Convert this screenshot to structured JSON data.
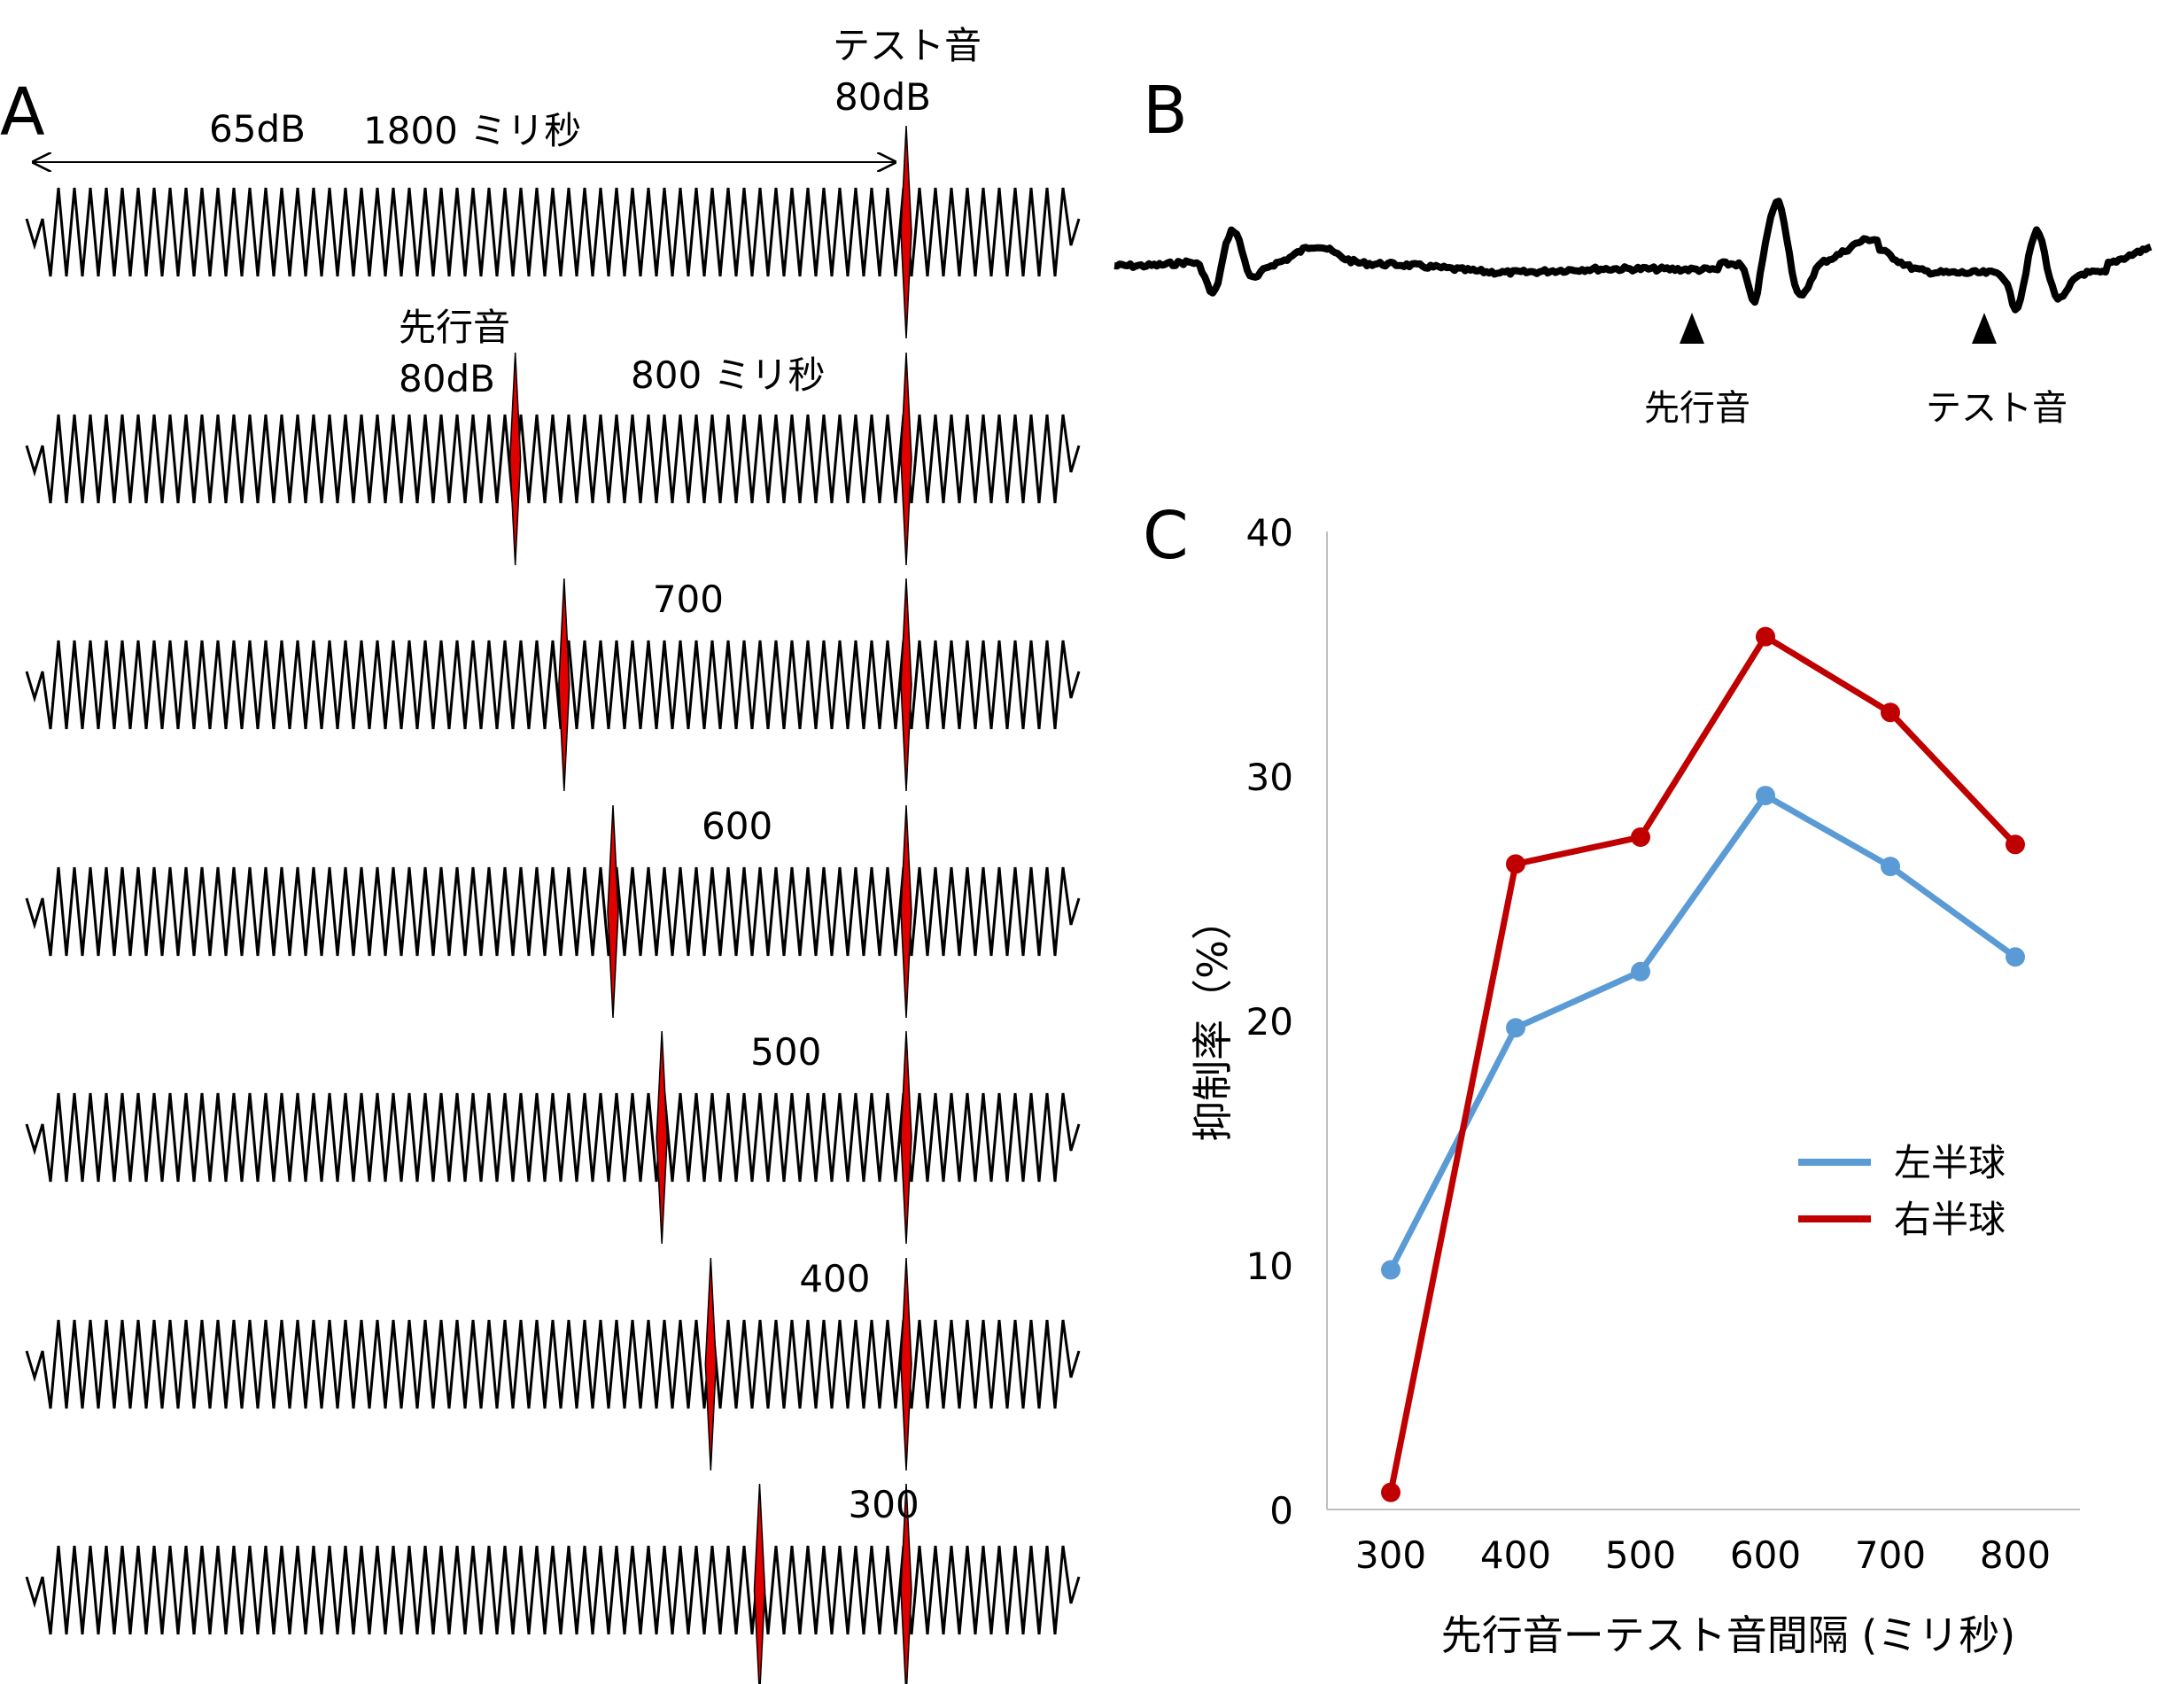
{
  "panels": {
    "a": {
      "letter": "A",
      "top_labels": {
        "level": "65dB",
        "duration": "1800 ミリ秒",
        "test_title": "テスト音",
        "test_level": "80dB"
      },
      "second_labels": {
        "prec_title": "先行音",
        "prec_level": "80dB",
        "interval": "800 ミリ秒"
      },
      "rows": [
        {
          "interval_ms": 1800,
          "label": ""
        },
        {
          "interval_ms": 800,
          "label": ""
        },
        {
          "interval_ms": 700,
          "label": "700"
        },
        {
          "interval_ms": 600,
          "label": "600"
        },
        {
          "interval_ms": 500,
          "label": "500"
        },
        {
          "interval_ms": 400,
          "label": "400"
        },
        {
          "interval_ms": 300,
          "label": "300"
        }
      ]
    },
    "b": {
      "letter": "B",
      "arrow_labels": [
        "先行音",
        "テスト音"
      ]
    },
    "c": {
      "letter": "C"
    }
  },
  "chart_data": {
    "type": "line",
    "categories": [
      "300",
      "400",
      "500",
      "600",
      "700",
      "800"
    ],
    "x": [
      300,
      400,
      500,
      600,
      700,
      800
    ],
    "series": [
      {
        "name": "左半球",
        "color": "#5b9bd5",
        "values": [
          9.8,
          19.7,
          22.0,
          29.2,
          26.3,
          22.6
        ]
      },
      {
        "name": "右半球",
        "color": "#c00000",
        "values": [
          0.7,
          26.4,
          27.5,
          35.7,
          32.6,
          27.2
        ]
      }
    ],
    "xlabel": "先行音ーテスト音間隔 (ミリ秒)",
    "ylabel": "抑制率（%）",
    "ylim": [
      0,
      40
    ],
    "yticks": [
      0,
      10,
      20,
      30,
      40
    ],
    "legend_position": "middle-right",
    "grid": false
  },
  "colors": {
    "waveform": "#000000",
    "marker": "#e00000"
  }
}
